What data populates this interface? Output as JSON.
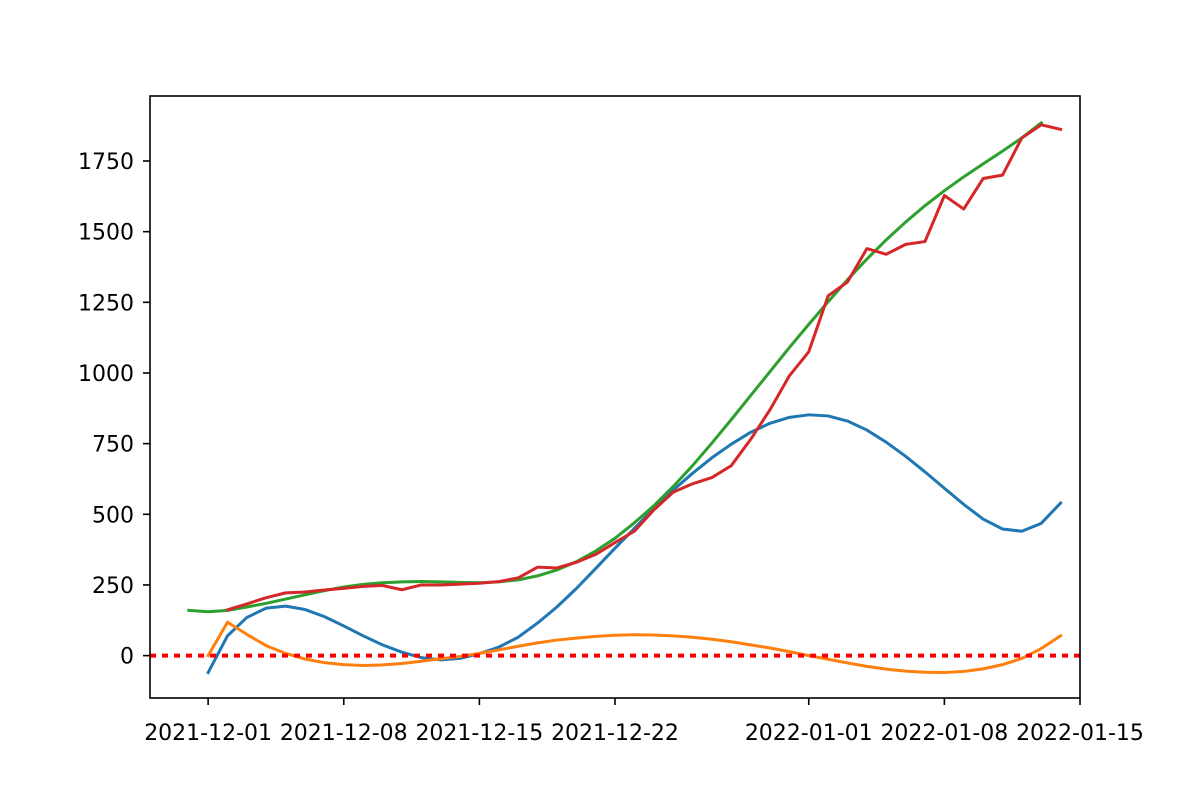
{
  "chart_data": {
    "type": "line",
    "title": "",
    "xlabel": "",
    "ylabel": "",
    "x_axis": {
      "type": "date",
      "range": [
        "2021-11-28",
        "2022-01-15"
      ],
      "ticks": [
        "2021-12-01",
        "2021-12-08",
        "2021-12-15",
        "2021-12-22",
        "2022-01-01",
        "2022-01-08",
        "2022-01-15"
      ]
    },
    "y_axis": {
      "range": [
        -150,
        1980
      ],
      "ticks": [
        0,
        250,
        500,
        750,
        1000,
        1250,
        1500,
        1750
      ]
    },
    "grid": false,
    "legend": "none",
    "reference_line": {
      "y": 0,
      "style": "dotted",
      "color": "#ff0000"
    },
    "series": [
      {
        "color": "#1f77b4",
        "points": [
          [
            "2021-12-01",
            -60
          ],
          [
            "2021-12-02",
            70
          ],
          [
            "2021-12-03",
            135
          ],
          [
            "2021-12-04",
            168
          ],
          [
            "2021-12-05",
            175
          ],
          [
            "2021-12-06",
            163
          ],
          [
            "2021-12-07",
            138
          ],
          [
            "2021-12-08",
            105
          ],
          [
            "2021-12-09",
            70
          ],
          [
            "2021-12-10",
            38
          ],
          [
            "2021-12-11",
            12
          ],
          [
            "2021-12-12",
            -7
          ],
          [
            "2021-12-13",
            -15
          ],
          [
            "2021-12-14",
            -10
          ],
          [
            "2021-12-15",
            7
          ],
          [
            "2021-12-16",
            30
          ],
          [
            "2021-12-17",
            65
          ],
          [
            "2021-12-18",
            115
          ],
          [
            "2021-12-19",
            172
          ],
          [
            "2021-12-20",
            237
          ],
          [
            "2021-12-21",
            308
          ],
          [
            "2021-12-22",
            380
          ],
          [
            "2021-12-23",
            450
          ],
          [
            "2021-12-24",
            520
          ],
          [
            "2021-12-25",
            585
          ],
          [
            "2021-12-26",
            645
          ],
          [
            "2021-12-27",
            700
          ],
          [
            "2021-12-28",
            748
          ],
          [
            "2021-12-29",
            790
          ],
          [
            "2021-12-30",
            822
          ],
          [
            "2021-12-31",
            843
          ],
          [
            "2022-01-01",
            852
          ],
          [
            "2022-01-02",
            848
          ],
          [
            "2022-01-03",
            830
          ],
          [
            "2022-01-04",
            798
          ],
          [
            "2022-01-05",
            755
          ],
          [
            "2022-01-06",
            705
          ],
          [
            "2022-01-07",
            650
          ],
          [
            "2022-01-08",
            592
          ],
          [
            "2022-01-09",
            535
          ],
          [
            "2022-01-10",
            483
          ],
          [
            "2022-01-11",
            448
          ],
          [
            "2022-01-12",
            440
          ],
          [
            "2022-01-13",
            468
          ],
          [
            "2022-01-14",
            540
          ]
        ]
      },
      {
        "color": "#ff7f0e",
        "points": [
          [
            "2021-12-01",
            0
          ],
          [
            "2021-12-02",
            118
          ],
          [
            "2021-12-03",
            75
          ],
          [
            "2021-12-04",
            35
          ],
          [
            "2021-12-05",
            8
          ],
          [
            "2021-12-06",
            -12
          ],
          [
            "2021-12-07",
            -25
          ],
          [
            "2021-12-08",
            -32
          ],
          [
            "2021-12-09",
            -35
          ],
          [
            "2021-12-10",
            -33
          ],
          [
            "2021-12-11",
            -28
          ],
          [
            "2021-12-12",
            -20
          ],
          [
            "2021-12-13",
            -11
          ],
          [
            "2021-12-14",
            -3
          ],
          [
            "2021-12-15",
            8
          ],
          [
            "2021-12-16",
            20
          ],
          [
            "2021-12-17",
            33
          ],
          [
            "2021-12-18",
            45
          ],
          [
            "2021-12-19",
            55
          ],
          [
            "2021-12-20",
            62
          ],
          [
            "2021-12-21",
            68
          ],
          [
            "2021-12-22",
            72
          ],
          [
            "2021-12-23",
            74
          ],
          [
            "2021-12-24",
            73
          ],
          [
            "2021-12-25",
            70
          ],
          [
            "2021-12-26",
            65
          ],
          [
            "2021-12-27",
            58
          ],
          [
            "2021-12-28",
            49
          ],
          [
            "2021-12-29",
            38
          ],
          [
            "2021-12-30",
            27
          ],
          [
            "2021-12-31",
            14
          ],
          [
            "2022-01-01",
            0
          ],
          [
            "2022-01-02",
            -13
          ],
          [
            "2022-01-03",
            -26
          ],
          [
            "2022-01-04",
            -38
          ],
          [
            "2022-01-05",
            -48
          ],
          [
            "2022-01-06",
            -55
          ],
          [
            "2022-01-07",
            -59
          ],
          [
            "2022-01-08",
            -60
          ],
          [
            "2022-01-09",
            -56
          ],
          [
            "2022-01-10",
            -47
          ],
          [
            "2022-01-11",
            -32
          ],
          [
            "2022-01-12",
            -10
          ],
          [
            "2022-01-13",
            25
          ],
          [
            "2022-01-14",
            70
          ]
        ]
      },
      {
        "color": "#2ca02c",
        "points": [
          [
            "2021-11-30",
            160
          ],
          [
            "2021-12-01",
            155
          ],
          [
            "2021-12-02",
            160
          ],
          [
            "2021-12-03",
            172
          ],
          [
            "2021-12-04",
            185
          ],
          [
            "2021-12-05",
            200
          ],
          [
            "2021-12-06",
            215
          ],
          [
            "2021-12-07",
            230
          ],
          [
            "2021-12-08",
            243
          ],
          [
            "2021-12-09",
            252
          ],
          [
            "2021-12-10",
            258
          ],
          [
            "2021-12-11",
            261
          ],
          [
            "2021-12-12",
            262
          ],
          [
            "2021-12-13",
            261
          ],
          [
            "2021-12-14",
            259
          ],
          [
            "2021-12-15",
            258
          ],
          [
            "2021-12-16",
            261
          ],
          [
            "2021-12-17",
            268
          ],
          [
            "2021-12-18",
            282
          ],
          [
            "2021-12-19",
            303
          ],
          [
            "2021-12-20",
            332
          ],
          [
            "2021-12-21",
            370
          ],
          [
            "2021-12-22",
            415
          ],
          [
            "2021-12-23",
            470
          ],
          [
            "2021-12-24",
            530
          ],
          [
            "2021-12-25",
            598
          ],
          [
            "2021-12-26",
            672
          ],
          [
            "2021-12-27",
            752
          ],
          [
            "2021-12-28",
            835
          ],
          [
            "2021-12-29",
            920
          ],
          [
            "2021-12-30",
            1005
          ],
          [
            "2021-12-31",
            1090
          ],
          [
            "2022-01-01",
            1172
          ],
          [
            "2022-01-02",
            1252
          ],
          [
            "2022-01-03",
            1330
          ],
          [
            "2022-01-04",
            1403
          ],
          [
            "2022-01-05",
            1471
          ],
          [
            "2022-01-06",
            1534
          ],
          [
            "2022-01-07",
            1592
          ],
          [
            "2022-01-08",
            1645
          ],
          [
            "2022-01-09",
            1694
          ],
          [
            "2022-01-10",
            1740
          ],
          [
            "2022-01-11",
            1785
          ],
          [
            "2022-01-12",
            1832
          ],
          [
            "2022-01-13",
            1885
          ]
        ]
      },
      {
        "color": "#d62728",
        "points": [
          [
            "2021-12-02",
            162
          ],
          [
            "2021-12-03",
            183
          ],
          [
            "2021-12-04",
            205
          ],
          [
            "2021-12-05",
            222
          ],
          [
            "2021-12-06",
            225
          ],
          [
            "2021-12-07",
            232
          ],
          [
            "2021-12-08",
            238
          ],
          [
            "2021-12-09",
            245
          ],
          [
            "2021-12-10",
            248
          ],
          [
            "2021-12-11",
            233
          ],
          [
            "2021-12-12",
            250
          ],
          [
            "2021-12-13",
            250
          ],
          [
            "2021-12-14",
            253
          ],
          [
            "2021-12-15",
            256
          ],
          [
            "2021-12-16",
            262
          ],
          [
            "2021-12-17",
            275
          ],
          [
            "2021-12-18",
            313
          ],
          [
            "2021-12-19",
            310
          ],
          [
            "2021-12-20",
            330
          ],
          [
            "2021-12-21",
            358
          ],
          [
            "2021-12-22",
            400
          ],
          [
            "2021-12-23",
            440
          ],
          [
            "2021-12-24",
            515
          ],
          [
            "2021-12-25",
            578
          ],
          [
            "2021-12-26",
            608
          ],
          [
            "2021-12-27",
            630
          ],
          [
            "2021-12-28",
            672
          ],
          [
            "2021-12-29",
            765
          ],
          [
            "2021-12-30",
            870
          ],
          [
            "2021-12-31",
            990
          ],
          [
            "2022-01-01",
            1075
          ],
          [
            "2022-01-02",
            1273
          ],
          [
            "2022-01-03",
            1322
          ],
          [
            "2022-01-04",
            1440
          ],
          [
            "2022-01-05",
            1420
          ],
          [
            "2022-01-06",
            1455
          ],
          [
            "2022-01-07",
            1465
          ],
          [
            "2022-01-08",
            1628
          ],
          [
            "2022-01-09",
            1580
          ],
          [
            "2022-01-10",
            1688
          ],
          [
            "2022-01-11",
            1700
          ],
          [
            "2022-01-12",
            1832
          ],
          [
            "2022-01-13",
            1878
          ],
          [
            "2022-01-14",
            1862
          ]
        ]
      }
    ]
  }
}
